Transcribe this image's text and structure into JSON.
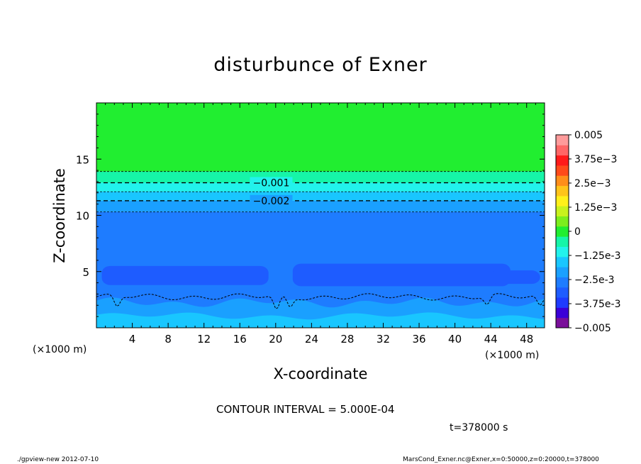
{
  "chart_data": {
    "type": "heatmap",
    "title": "disturbunce of Exner",
    "xlabel": "X-coordinate",
    "ylabel": "Z-coordinate",
    "x_unit": "(×1000 m)",
    "xlim": [
      0,
      50
    ],
    "ylim": [
      0,
      20
    ],
    "x_ticks": [
      4,
      8,
      12,
      16,
      20,
      24,
      28,
      32,
      36,
      40,
      44,
      48
    ],
    "y_ticks": [
      5,
      10,
      15
    ],
    "contour_labels": [
      {
        "text": "-0.001",
        "x": 19.5,
        "z": 12.9
      },
      {
        "text": "-0.002",
        "x": 19.5,
        "z": 11.3
      }
    ],
    "levels_z": [
      {
        "z": 13.9,
        "value": -0.0005
      },
      {
        "z": 12.9,
        "value": -0.001
      },
      {
        "z": 12.1,
        "value": -0.0015
      },
      {
        "z": 11.3,
        "value": -0.002
      },
      {
        "z": 10.3,
        "value": -0.0025
      }
    ],
    "colorbar": {
      "labels": [
        "0.005",
        "3.75e-3",
        "2.5e-3",
        "1.25e-3",
        "0",
        "-1.25e-3",
        "-2.5e-3",
        "-3.75e-3",
        "-0.005"
      ],
      "range": [
        -0.005,
        0.005
      ],
      "colors": [
        "#7a0f9a",
        "#3b00d8",
        "#1e3bff",
        "#1e5cff",
        "#1e7cff",
        "#1aa0ff",
        "#19c6ff",
        "#22f2ec",
        "#16f5a8",
        "#21ee30",
        "#7cee1d",
        "#c8f21d",
        "#fff01a",
        "#ffc41a",
        "#ff8e1a",
        "#ff4a1a",
        "#ff1a1a",
        "#ff6666",
        "#ff9b9b"
      ]
    },
    "contour_interval_text": "CONTOUR INTERVAL = 5.000E-04",
    "time_text": "t=378000 s"
  },
  "footer": {
    "left": "./gpview-new   2012-07-10",
    "right": "MarsCond_Exner.nc@Exner,x=0:50000,z=0:20000,t=378000"
  },
  "colors": {
    "green": "#21ee30",
    "mint": "#16f5a8",
    "cyan": "#22f2ec",
    "sky": "#19c6ff",
    "lightblue": "#1aa0ff",
    "blue": "#1e7cff",
    "deepblue": "#1e5cff"
  }
}
